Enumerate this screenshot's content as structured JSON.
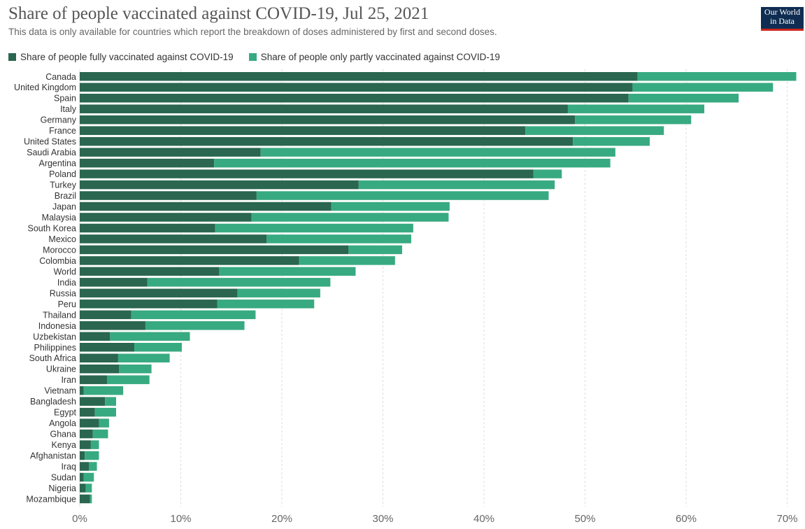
{
  "header": {
    "title": "Share of people vaccinated against COVID-19, Jul 25, 2021",
    "subtitle": "This data is only available for countries which report the breakdown of doses administered by first and second doses.",
    "logo_line1": "Our World",
    "logo_line2": "in Data"
  },
  "colors": {
    "fully": "#2a6650",
    "partly": "#38aa82",
    "grid": "#dddddd",
    "axis_text": "#666666",
    "label_text": "#333333"
  },
  "chart_data": {
    "type": "bar",
    "orientation": "horizontal",
    "stacked": true,
    "title": "Share of people vaccinated against COVID-19, Jul 25, 2021",
    "subtitle": "This data is only available for countries which report the breakdown of doses administered by first and second doses.",
    "xlim": [
      0,
      70
    ],
    "x_ticks": [
      "0%",
      "10%",
      "20%",
      "30%",
      "40%",
      "50%",
      "60%",
      "70%"
    ],
    "grid": true,
    "legend_position": "top-left",
    "categories": [
      "Canada",
      "United Kingdom",
      "Spain",
      "Italy",
      "Germany",
      "France",
      "United States",
      "Saudi Arabia",
      "Argentina",
      "Poland",
      "Turkey",
      "Brazil",
      "Japan",
      "Malaysia",
      "South Korea",
      "Mexico",
      "Morocco",
      "Colombia",
      "World",
      "India",
      "Russia",
      "Peru",
      "Thailand",
      "Indonesia",
      "Uzbekistan",
      "Philippines",
      "South Africa",
      "Ukraine",
      "Iran",
      "Vietnam",
      "Bangladesh",
      "Egypt",
      "Angola",
      "Ghana",
      "Kenya",
      "Afghanistan",
      "Iraq",
      "Sudan",
      "Nigeria",
      "Mozambique"
    ],
    "series": [
      {
        "name": "Share of people fully vaccinated against COVID-19",
        "values": [
          55.2,
          54.7,
          54.3,
          48.3,
          49.0,
          44.1,
          48.8,
          17.9,
          13.3,
          44.9,
          27.6,
          17.5,
          24.9,
          17.0,
          13.4,
          18.5,
          26.6,
          21.7,
          13.8,
          6.7,
          15.6,
          13.6,
          5.1,
          6.5,
          3.0,
          5.4,
          3.8,
          3.9,
          2.7,
          0.4,
          2.5,
          1.5,
          1.9,
          1.3,
          1.1,
          0.5,
          0.9,
          0.4,
          0.6,
          1.0
        ]
      },
      {
        "name": "Share of people only partly vaccinated against COVID-19",
        "values": [
          15.7,
          13.9,
          10.9,
          13.5,
          11.5,
          13.7,
          7.6,
          35.1,
          39.2,
          2.8,
          19.4,
          28.9,
          11.7,
          19.5,
          19.6,
          14.3,
          5.3,
          9.5,
          13.5,
          18.1,
          8.2,
          9.6,
          12.3,
          9.8,
          7.9,
          4.7,
          5.1,
          3.2,
          4.2,
          3.9,
          1.1,
          2.1,
          1.0,
          1.5,
          0.8,
          1.4,
          0.8,
          1.0,
          0.6,
          0.2
        ]
      }
    ]
  }
}
